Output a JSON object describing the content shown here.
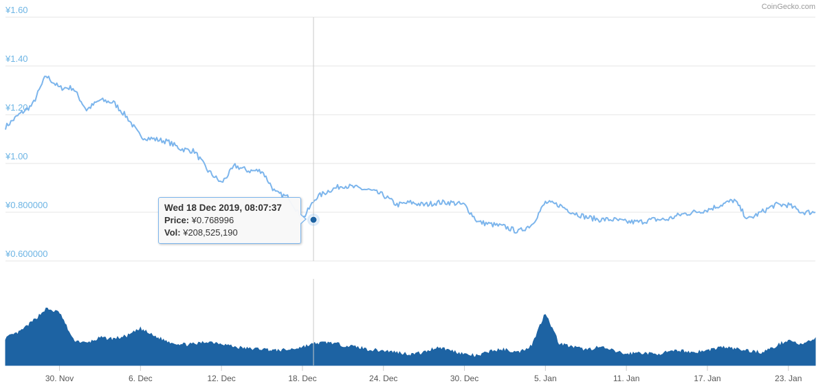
{
  "credit": "CoinGecko.com",
  "chart_data": [
    {
      "type": "line",
      "title": "",
      "xlabel": "",
      "ylabel": "",
      "y_tick_labels": [
        "¥0.600000",
        "¥0.800000",
        "¥1.00",
        "¥1.20",
        "¥1.40",
        "¥1.60"
      ],
      "y_tick_values": [
        0.6,
        0.8,
        1.0,
        1.2,
        1.4,
        1.6
      ],
      "ylim": [
        0.6,
        1.6
      ],
      "xlim": [
        "2019-11-26",
        "2020-01-25"
      ],
      "x_tick_labels": [
        "30. Nov",
        "6. Dec",
        "12. Dec",
        "18. Dec",
        "24. Dec",
        "30. Dec",
        "5. Jan",
        "11. Jan",
        "17. Jan",
        "23. Jan"
      ],
      "x_tick_dates": [
        "2019-11-30",
        "2019-12-06",
        "2019-12-12",
        "2019-12-18",
        "2019-12-24",
        "2019-12-30",
        "2020-01-05",
        "2020-01-11",
        "2020-01-17",
        "2020-01-23"
      ],
      "grid": true,
      "color": "#7cb5ec",
      "series": [
        {
          "x": [
            "2019-11-26",
            "2019-11-27",
            "2019-11-28",
            "2019-11-29",
            "2019-11-30",
            "2019-12-01",
            "2019-12-02",
            "2019-12-03",
            "2019-12-04",
            "2019-12-05",
            "2019-12-06",
            "2019-12-07",
            "2019-12-08",
            "2019-12-09",
            "2019-12-10",
            "2019-12-11",
            "2019-12-12",
            "2019-12-13",
            "2019-12-14",
            "2019-12-15",
            "2019-12-16",
            "2019-12-17",
            "2019-12-18",
            "2019-12-19",
            "2019-12-20",
            "2019-12-21",
            "2019-12-22",
            "2019-12-23",
            "2019-12-24",
            "2019-12-25",
            "2019-12-26",
            "2019-12-27",
            "2019-12-28",
            "2019-12-29",
            "2019-12-30",
            "2019-12-31",
            "2020-01-01",
            "2020-01-02",
            "2020-01-03",
            "2020-01-04",
            "2020-01-05",
            "2020-01-06",
            "2020-01-07",
            "2020-01-08",
            "2020-01-09",
            "2020-01-10",
            "2020-01-11",
            "2020-01-12",
            "2020-01-13",
            "2020-01-14",
            "2020-01-15",
            "2020-01-16",
            "2020-01-17",
            "2020-01-18",
            "2020-01-19",
            "2020-01-20",
            "2020-01-21",
            "2020-01-22",
            "2020-01-23",
            "2020-01-24",
            "2020-01-25"
          ],
          "values": [
            1.15,
            1.2,
            1.24,
            1.36,
            1.31,
            1.31,
            1.22,
            1.26,
            1.25,
            1.19,
            1.11,
            1.1,
            1.09,
            1.06,
            1.05,
            0.97,
            0.92,
            0.99,
            0.97,
            0.97,
            0.88,
            0.86,
            0.77,
            0.86,
            0.89,
            0.91,
            0.9,
            0.89,
            0.87,
            0.83,
            0.84,
            0.83,
            0.84,
            0.84,
            0.83,
            0.76,
            0.75,
            0.74,
            0.72,
            0.75,
            0.84,
            0.83,
            0.8,
            0.78,
            0.77,
            0.77,
            0.76,
            0.76,
            0.77,
            0.77,
            0.79,
            0.8,
            0.81,
            0.83,
            0.85,
            0.77,
            0.8,
            0.83,
            0.83,
            0.8,
            0.8
          ]
        }
      ]
    },
    {
      "type": "area",
      "title": "",
      "xlabel": "",
      "ylabel": "",
      "color": "#1d63a3",
      "series": [
        {
          "x": [
            "2019-11-26",
            "2019-11-27",
            "2019-11-28",
            "2019-11-29",
            "2019-11-30",
            "2019-12-01",
            "2019-12-02",
            "2019-12-03",
            "2019-12-04",
            "2019-12-05",
            "2019-12-06",
            "2019-12-07",
            "2019-12-08",
            "2019-12-09",
            "2019-12-10",
            "2019-12-11",
            "2019-12-12",
            "2019-12-13",
            "2019-12-14",
            "2019-12-15",
            "2019-12-16",
            "2019-12-17",
            "2019-12-18",
            "2019-12-19",
            "2019-12-20",
            "2019-12-21",
            "2019-12-22",
            "2019-12-23",
            "2019-12-24",
            "2019-12-25",
            "2019-12-26",
            "2019-12-27",
            "2019-12-28",
            "2019-12-29",
            "2019-12-30",
            "2019-12-31",
            "2020-01-01",
            "2020-01-02",
            "2020-01-03",
            "2020-01-04",
            "2020-01-05",
            "2020-01-06",
            "2020-01-07",
            "2020-01-08",
            "2020-01-09",
            "2020-01-10",
            "2020-01-11",
            "2020-01-12",
            "2020-01-13",
            "2020-01-14",
            "2020-01-15",
            "2020-01-16",
            "2020-01-17",
            "2020-01-18",
            "2020-01-19",
            "2020-01-20",
            "2020-01-21",
            "2020-01-22",
            "2020-01-23",
            "2020-01-24",
            "2020-01-25"
          ],
          "values": [
            30,
            36,
            48,
            62,
            58,
            28,
            24,
            30,
            29,
            32,
            40,
            32,
            26,
            23,
            23,
            26,
            24,
            20,
            18,
            18,
            16,
            17,
            20,
            24,
            25,
            22,
            20,
            17,
            16,
            14,
            12,
            14,
            20,
            16,
            12,
            10,
            16,
            17,
            14,
            22,
            58,
            24,
            20,
            17,
            20,
            16,
            12,
            14,
            12,
            14,
            16,
            14,
            16,
            20,
            18,
            16,
            14,
            20,
            28,
            22,
            30
          ]
        }
      ]
    }
  ],
  "tooltip": {
    "header": "Wed 18 Dec 2019, 08:07:37",
    "price_label": "Price:",
    "price_value": "¥0.768996",
    "vol_label": "Vol:",
    "vol_value": "¥208,525,190"
  }
}
